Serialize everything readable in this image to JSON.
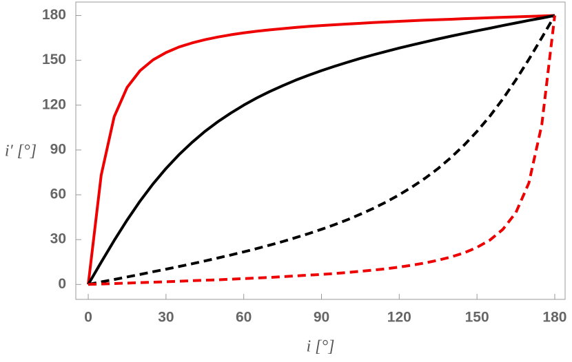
{
  "chart_data": {
    "type": "line",
    "x_label": "i [°]",
    "y_label": "i′ [°]",
    "x": [
      0,
      5,
      10,
      15,
      20,
      25,
      30,
      35,
      40,
      45,
      50,
      55,
      60,
      65,
      70,
      75,
      80,
      85,
      90,
      95,
      100,
      105,
      110,
      115,
      120,
      125,
      130,
      135,
      140,
      145,
      150,
      155,
      160,
      165,
      170,
      175,
      180
    ],
    "series": [
      {
        "color": "#ee0000",
        "dashed": false,
        "values": [
          0,
          73.2,
          112.2,
          131.9,
          143.1,
          150.3,
          155.2,
          158.9,
          161.6,
          163.8,
          165.6,
          167.1,
          168.4,
          169.5,
          170.4,
          171.2,
          172.0,
          172.7,
          173.3,
          173.8,
          174.3,
          174.8,
          175.3,
          175.7,
          176.1,
          176.5,
          176.9,
          177.2,
          177.5,
          177.9,
          178.2,
          178.5,
          178.8,
          179.1,
          179.4,
          179.7,
          180
        ]
      },
      {
        "color": "#000000",
        "dashed": false,
        "values": [
          0,
          14.9,
          29.4,
          43.1,
          55.8,
          67.3,
          77.6,
          86.8,
          95.0,
          102.4,
          108.9,
          114.7,
          120,
          124.8,
          129.1,
          133.0,
          136.7,
          140.0,
          143.1,
          146.0,
          148.7,
          151.3,
          153.7,
          156.0,
          158.2,
          160.3,
          162.3,
          164.3,
          166.2,
          168.0,
          169.8,
          171.5,
          173.3,
          175.0,
          176.7,
          178.3,
          180
        ]
      },
      {
        "color": "#000000",
        "dashed": true,
        "values": [
          0,
          1.7,
          3.3,
          5.0,
          6.7,
          8.5,
          10.2,
          12.0,
          13.8,
          15.7,
          17.7,
          19.7,
          21.8,
          24.0,
          26.3,
          28.7,
          31.3,
          34.0,
          36.9,
          40.0,
          43.3,
          47.0,
          50.9,
          55.2,
          60,
          65.3,
          71.1,
          77.6,
          85.0,
          93.2,
          102.4,
          112.7,
          124.2,
          136.9,
          150.6,
          165.1,
          180
        ]
      },
      {
        "color": "#ee0000",
        "dashed": true,
        "values": [
          0,
          0.3,
          0.6,
          0.9,
          1.2,
          1.5,
          1.8,
          2.1,
          2.5,
          2.8,
          3.1,
          3.5,
          3.9,
          4.3,
          4.7,
          5.2,
          5.7,
          6.2,
          6.7,
          7.3,
          8.0,
          8.8,
          9.6,
          10.5,
          11.6,
          12.9,
          14.4,
          16.2,
          18.4,
          21.1,
          24.8,
          29.7,
          36.9,
          48.1,
          67.8,
          106.8,
          180
        ]
      }
    ],
    "xlim": [
      -4.8,
      184
    ],
    "ylim": [
      -10,
      189
    ],
    "xticks": [
      0,
      30,
      60,
      90,
      120,
      150,
      180
    ],
    "yticks": [
      0,
      30,
      60,
      90,
      120,
      150,
      180
    ],
    "grid": false
  }
}
